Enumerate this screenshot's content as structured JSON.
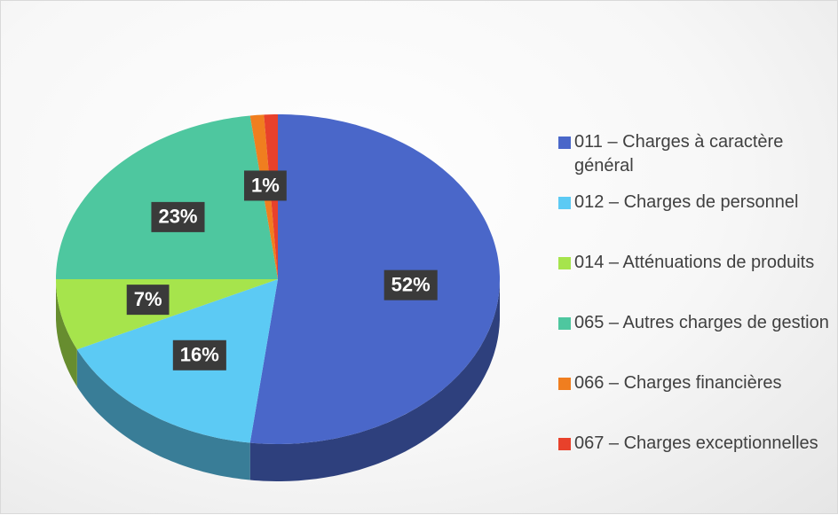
{
  "chart_data": {
    "type": "pie",
    "categories": [
      "011 – Charges à caractère général",
      "012 – Charges de personnel",
      "014 – Atténuations de produits",
      "065 – Autres charges de gestion",
      "066 – Charges financières",
      "067 – Charges exceptionnelles"
    ],
    "values": [
      52,
      16,
      7,
      23,
      1,
      1
    ],
    "value_labels": [
      "52%",
      "16%",
      "7%",
      "23%",
      "1%",
      null
    ],
    "colors": [
      "#4a67c9",
      "#5ccaf4",
      "#a6e44c",
      "#4ec79f",
      "#f07e1f",
      "#e8412b"
    ],
    "legend": "right"
  }
}
